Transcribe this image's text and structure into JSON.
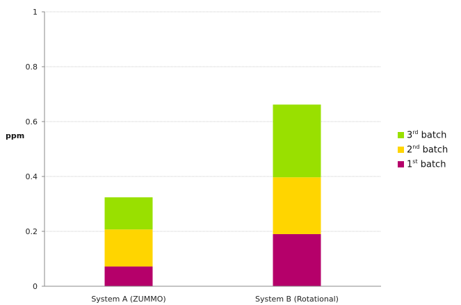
{
  "chart_data": {
    "type": "bar",
    "stacked": true,
    "categories": [
      "System A (ZUMMO)",
      "System B (Rotational)"
    ],
    "series": [
      {
        "name": "1st batch",
        "values": [
          0.072,
          0.19
        ],
        "color": "#b5006a"
      },
      {
        "name": "2nd batch",
        "values": [
          0.135,
          0.207
        ],
        "color": "#ffd500"
      },
      {
        "name": "3rd batch",
        "values": [
          0.117,
          0.265
        ],
        "color": "#99e000"
      }
    ],
    "ylabel": "ppm",
    "ylim": [
      0,
      1
    ],
    "yticks": [
      "0",
      "0.2",
      "0.4",
      "0.6",
      "0.8",
      "1"
    ],
    "grid": true,
    "legend_position": "right"
  },
  "legend": [
    {
      "num": "3",
      "sup": "rd",
      "word": "batch",
      "color": "#99e000"
    },
    {
      "num": "2",
      "sup": "nd",
      "word": "batch",
      "color": "#ffd500"
    },
    {
      "num": "1",
      "sup": "st",
      "word": "batch",
      "color": "#b5006a"
    }
  ]
}
